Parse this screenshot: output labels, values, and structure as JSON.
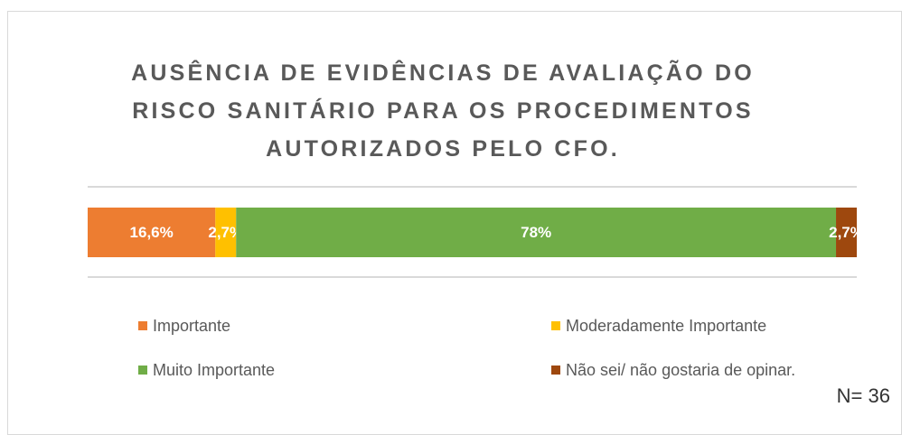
{
  "chart_data": {
    "type": "stacked-bar-100",
    "title": "AUSÊNCIA DE EVIDÊNCIAS DE AVALIAÇÃO DO RISCO SANITÁRIO PARA OS PROCEDIMENTOS AUTORIZADOS PELO CFO.",
    "categories": [
      null
    ],
    "xlim": [
      0,
      100
    ],
    "series": [
      {
        "name": "Importante",
        "color": "#ED7D31",
        "values": [
          16.6
        ],
        "value_labels": [
          "16,6%"
        ]
      },
      {
        "name": "Moderadamente Importante",
        "color": "#FFC000",
        "values": [
          2.7
        ],
        "value_labels": [
          "2,7%"
        ]
      },
      {
        "name": "Muito Importante",
        "color": "#70AD47",
        "values": [
          78
        ],
        "value_labels": [
          "78%"
        ]
      },
      {
        "name": "Não sei/ não gostaria de opinar.",
        "color": "#9E480E",
        "values": [
          2.7
        ],
        "value_labels": [
          "2,7%"
        ]
      }
    ],
    "annotation": "N= 36"
  }
}
